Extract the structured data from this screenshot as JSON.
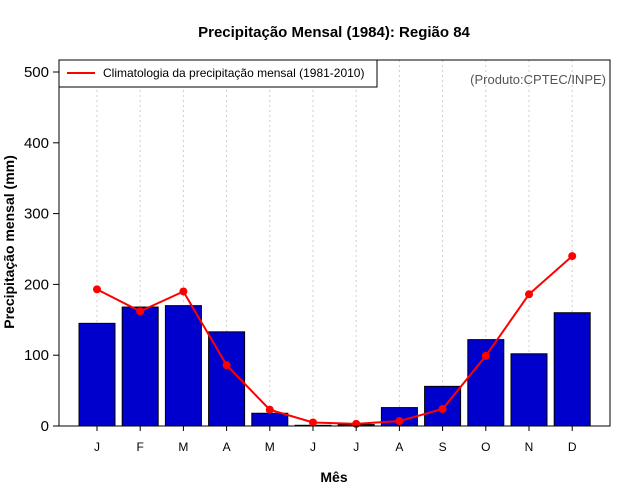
{
  "chart_data": {
    "type": "bar",
    "title": "Precipitação Mensal (1984): Região 84",
    "xlabel": "Mês",
    "ylabel": "Precipitação mensal (mm)",
    "ylim": [
      0,
      500
    ],
    "yticks": [
      0,
      100,
      200,
      300,
      400,
      500
    ],
    "categories": [
      "J",
      "F",
      "M",
      "A",
      "M",
      "J",
      "J",
      "A",
      "S",
      "O",
      "N",
      "D"
    ],
    "series": [
      {
        "name": "Precipitação mensal (1984)",
        "type": "bar",
        "color": "#0000cd",
        "values": [
          145,
          168,
          170,
          133,
          18,
          1,
          2,
          26,
          56,
          122,
          102,
          160
        ]
      },
      {
        "name": "Climatologia da precipitação mensal (1981-2010)",
        "type": "line",
        "color": "#ff0000",
        "values": [
          193,
          162,
          190,
          86,
          23,
          5,
          3,
          7,
          24,
          99,
          186,
          240
        ]
      }
    ],
    "legend": {
      "position": "top-left",
      "entries": [
        "Climatologia da precipitação mensal (1981-2010)"
      ]
    },
    "annotation": "(Produto:CPTEC/INPE)",
    "grid": "vertical-dotted"
  }
}
